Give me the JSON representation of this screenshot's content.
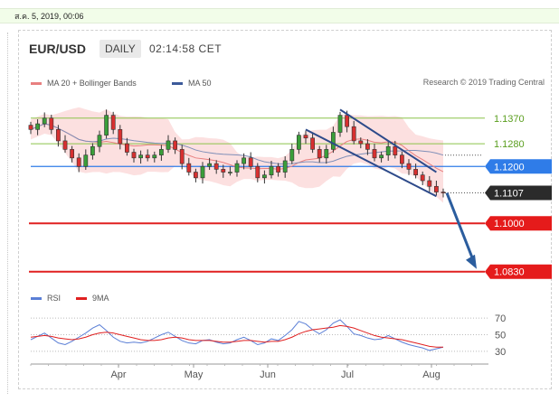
{
  "page": {
    "date_bar": "ส.ค. 5, 2019, 00:06"
  },
  "header": {
    "symbol": "EUR/USD",
    "timeframe": "DAILY",
    "time": "02:14:58 CET"
  },
  "legend": {
    "ma20": {
      "label": "MA 20 + Bollinger Bands",
      "color": "#e88080"
    },
    "ma50": {
      "label": "MA 50",
      "color": "#3c5a9a"
    },
    "credit": "Research © 2019 Trading Central"
  },
  "chart_data": [
    {
      "type": "line",
      "x_ticks": [
        "Apr",
        "May",
        "Jun",
        "Jul",
        "Aug"
      ],
      "ylim": [
        1.0775,
        1.1455
      ],
      "grid": false,
      "levels": [
        {
          "value": 1.137,
          "label": "1.1370",
          "kind": "resistance",
          "color": "#8bc34a"
        },
        {
          "value": 1.128,
          "label": "1.1280",
          "kind": "resistance",
          "color": "#8bc34a"
        },
        {
          "value": 1.12,
          "label": "1.1200",
          "kind": "pivot",
          "color": "#2f7ce8"
        },
        {
          "value": 1.1107,
          "label": "1.1107",
          "kind": "last",
          "color": "#222222"
        },
        {
          "value": 1.1,
          "label": "1.1000",
          "kind": "support",
          "color": "#e02020"
        },
        {
          "value": 1.083,
          "label": "1.0830",
          "kind": "support",
          "color": "#e02020"
        }
      ],
      "series": [
        {
          "values": [
            1.133,
            1.135,
            1.137,
            1.133,
            1.129,
            1.126,
            1.123,
            1.12,
            1.124,
            1.127,
            1.131,
            1.138,
            1.133,
            1.128,
            1.125,
            1.123,
            1.124,
            1.123,
            1.124,
            1.126,
            1.129,
            1.126,
            1.121,
            1.118,
            1.116,
            1.12,
            1.121,
            1.119,
            1.118,
            1.118,
            1.121,
            1.123,
            1.12,
            1.116,
            1.117,
            1.12,
            1.118,
            1.122,
            1.126,
            1.131,
            1.13,
            1.126,
            1.123,
            1.126,
            1.132,
            1.138,
            1.134,
            1.129,
            1.128,
            1.126,
            1.123,
            1.124,
            1.127,
            1.124,
            1.121,
            1.119,
            1.117,
            1.115,
            1.113,
            1.111,
            1.1107
          ]
        }
      ]
    },
    {
      "type": "line",
      "x_ticks": [
        "Apr",
        "May",
        "Jun",
        "Jul",
        "Aug"
      ],
      "ylim": [
        20,
        80
      ],
      "y_ticks": [
        70,
        50,
        30
      ],
      "legend": [
        {
          "name": "RSI",
          "color": "#5b7fd6"
        },
        {
          "name": "9MA",
          "color": "#e02020"
        }
      ],
      "series": [
        {
          "name": "RSI",
          "values": [
            44,
            48,
            52,
            46,
            40,
            38,
            42,
            47,
            52,
            58,
            62,
            55,
            47,
            42,
            40,
            41,
            40,
            42,
            46,
            50,
            53,
            48,
            43,
            40,
            39,
            43,
            44,
            41,
            39,
            40,
            44,
            47,
            43,
            38,
            40,
            45,
            43,
            49,
            56,
            66,
            63,
            56,
            51,
            56,
            64,
            68,
            60,
            51,
            49,
            46,
            44,
            45,
            49,
            45,
            41,
            38,
            36,
            34,
            31,
            33,
            35
          ]
        },
        {
          "name": "9MA",
          "values": [
            47,
            48,
            49,
            48,
            46,
            45,
            44,
            45,
            47,
            50,
            52,
            53,
            52,
            50,
            48,
            46,
            44,
            43,
            43,
            44,
            46,
            47,
            46,
            44,
            43,
            43,
            43,
            42,
            41,
            41,
            42,
            43,
            43,
            42,
            41,
            42,
            42,
            44,
            47,
            51,
            54,
            56,
            57,
            58,
            59,
            61,
            60,
            58,
            55,
            52,
            49,
            47,
            46,
            45,
            44,
            42,
            40,
            38,
            36,
            35,
            35
          ]
        }
      ]
    }
  ]
}
